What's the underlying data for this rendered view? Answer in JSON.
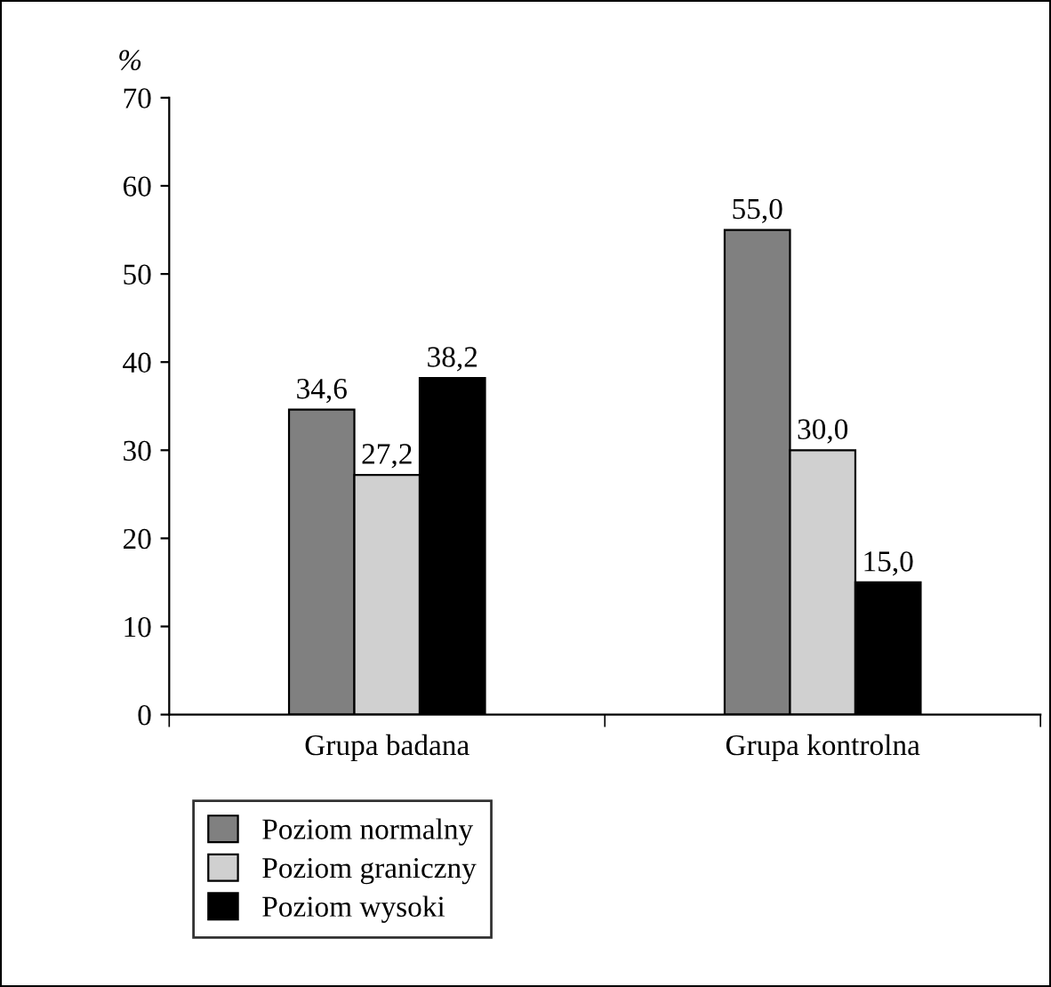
{
  "chart_data": {
    "type": "bar",
    "ylabel": "%",
    "categories": [
      "Grupa badana",
      "Grupa kontrolna"
    ],
    "series": [
      {
        "name": "Poziom normalny",
        "color": "#808080",
        "values": [
          34.6,
          55.0
        ],
        "value_labels": [
          "34,6",
          "55,0"
        ]
      },
      {
        "name": "Poziom graniczny",
        "color": "#d0d0d0",
        "values": [
          27.2,
          30.0
        ],
        "value_labels": [
          "27,2",
          "30,0"
        ]
      },
      {
        "name": "Poziom wysoki",
        "color": "#000000",
        "values": [
          38.2,
          15.0
        ],
        "value_labels": [
          "38,2",
          "15,0"
        ]
      }
    ],
    "ylim": [
      0,
      70
    ],
    "yticks": [
      0,
      10,
      20,
      30,
      40,
      50,
      60,
      70
    ],
    "grid": false,
    "legend": "bottom left"
  }
}
